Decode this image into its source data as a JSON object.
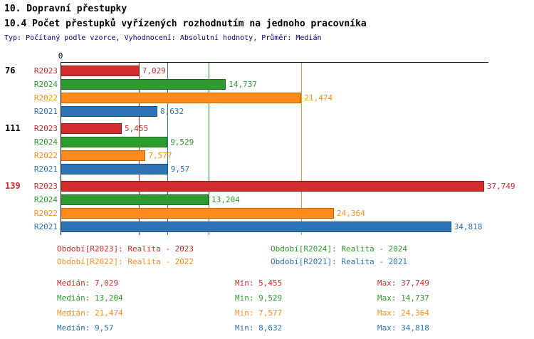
{
  "header": {
    "title": "10. Dopravní přestupky",
    "subtitle": "10.4 Počet přestupků vyřízených rozhodnutím na jednoho pracovníka",
    "meta": "Typ: Počítaný podle vzorce, Vyhodnocení: Absolutní hodnoty, Průměr: Medián"
  },
  "colors": {
    "meta_text": "#000080",
    "axis": "#000000",
    "group_highlight": "#d22d2d",
    "series": {
      "R2023": {
        "fill": "#d22d2d",
        "border": "#8e1a1a"
      },
      "R2024": {
        "fill": "#2e9b2e",
        "border": "#1c6b1c"
      },
      "R2022": {
        "fill": "#ff8c1a",
        "border": "#c06600"
      },
      "R2021": {
        "fill": "#2d74b5",
        "border": "#1c4f80"
      }
    }
  },
  "chart_data": {
    "type": "bar",
    "orientation": "horizontal",
    "title": "10.4 Počet přestupků vyřízených rozhodnutím na jednoho pracovníka",
    "xlabel": "",
    "ylabel": "",
    "xlim": [
      0,
      38.07
    ],
    "axis_zero_label": "0",
    "grid": "vertical-median-marker-lines",
    "legend_position": "bottom",
    "series_order": [
      "R2023",
      "R2024",
      "R2022",
      "R2021"
    ],
    "groups": [
      {
        "label": "76",
        "highlight": false,
        "bars": [
          {
            "series": "R2023",
            "value": 7.029,
            "display": "7,029"
          },
          {
            "series": "R2024",
            "value": 14.737,
            "display": "14,737"
          },
          {
            "series": "R2022",
            "value": 21.474,
            "display": "21,474"
          },
          {
            "series": "R2021",
            "value": 8.632,
            "display": "8,632"
          }
        ]
      },
      {
        "label": "111",
        "highlight": false,
        "bars": [
          {
            "series": "R2023",
            "value": 5.455,
            "display": "5,455"
          },
          {
            "series": "R2024",
            "value": 9.529,
            "display": "9,529"
          },
          {
            "series": "R2022",
            "value": 7.577,
            "display": "7,577"
          },
          {
            "series": "R2021",
            "value": 9.57,
            "display": "9,57"
          }
        ]
      },
      {
        "label": "139",
        "highlight": true,
        "bars": [
          {
            "series": "R2023",
            "value": 37.749,
            "display": "37,749"
          },
          {
            "series": "R2024",
            "value": 13.204,
            "display": "13,204"
          },
          {
            "series": "R2022",
            "value": 24.364,
            "display": "24,364"
          },
          {
            "series": "R2021",
            "value": 34.818,
            "display": "34,818"
          }
        ]
      }
    ],
    "median_lines": [
      {
        "series": "R2023",
        "value": 7.029
      },
      {
        "series": "R2021",
        "value": 9.57
      },
      {
        "series": "R2024",
        "value": 13.204
      },
      {
        "series": "R2022",
        "value": 21.474
      }
    ],
    "summary": [
      {
        "series": "R2023",
        "median": 7.029,
        "min": 5.455,
        "max": 37.749
      },
      {
        "series": "R2024",
        "median": 13.204,
        "min": 9.529,
        "max": 14.737
      },
      {
        "series": "R2022",
        "median": 21.474,
        "min": 7.577,
        "max": 24.364
      },
      {
        "series": "R2021",
        "median": 9.57,
        "min": 8.632,
        "max": 34.818
      }
    ]
  },
  "legend": [
    {
      "series": "R2023",
      "label": "Období[R2023]: Realita - 2023"
    },
    {
      "series": "R2024",
      "label": "Období[R2024]: Realita - 2024"
    },
    {
      "series": "R2022",
      "label": "Období[R2022]: Realita - 2022"
    },
    {
      "series": "R2021",
      "label": "Období[R2021]: Realita - 2021"
    }
  ],
  "stats": [
    {
      "series": "R2023",
      "median": "Medián: 7,029",
      "min": "Min: 5,455",
      "max": "Max: 37,749"
    },
    {
      "series": "R2024",
      "median": "Medián: 13,204",
      "min": "Min: 9,529",
      "max": "Max: 14,737"
    },
    {
      "series": "R2022",
      "median": "Medián: 21,474",
      "min": "Min: 7,577",
      "max": "Max: 24,364"
    },
    {
      "series": "R2021",
      "median": "Medián: 9,57",
      "min": "Min: 8,632",
      "max": "Max: 34,818"
    }
  ]
}
